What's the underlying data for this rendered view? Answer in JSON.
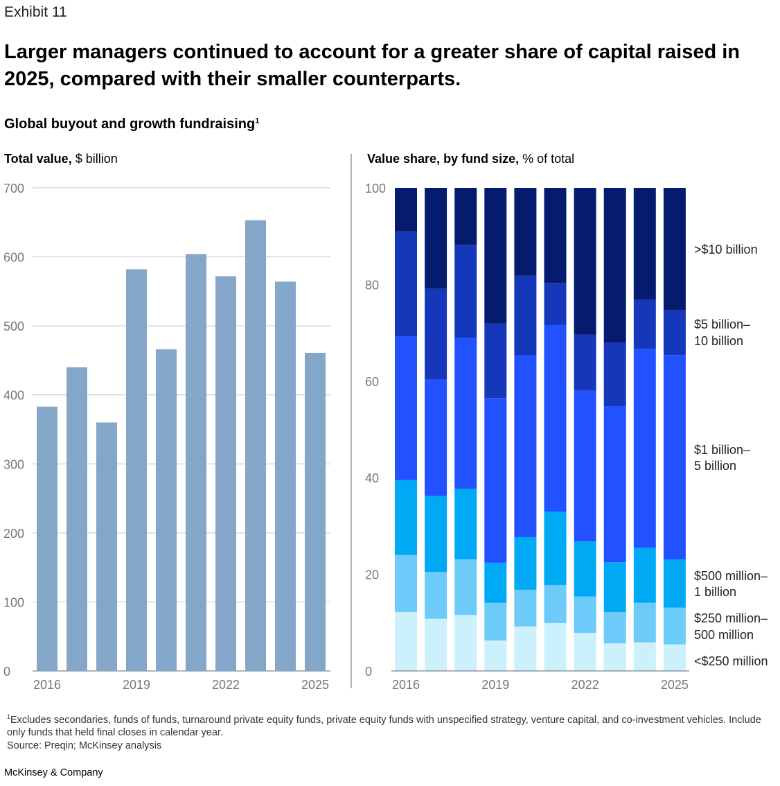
{
  "exhibit": "Exhibit 11",
  "title": "Larger managers continued to account for a greater share of capital raised in 2025, compared with their smaller counterparts.",
  "subtitle": "Global buyout and growth fundraising",
  "subtitle_sup": "1",
  "footnote": {
    "sup": "1",
    "text": "Excludes secondaries, funds of funds, turnaround private equity funds, private equity funds with unspecified strategy, venture capital, and co-investment vehicles. Include only funds that held final closes in calendar year.",
    "source": "Source: Preqin; McKinsey analysis"
  },
  "brand": "McKinsey & Company",
  "chart_data": [
    {
      "type": "bar",
      "title_bold": "Total value,",
      "title_rest": " $ billion",
      "categories": [
        "2016",
        "2017",
        "2018",
        "2019",
        "2020",
        "2021",
        "2022",
        "2023",
        "2024",
        "2025"
      ],
      "x_tick_labels": [
        "2016",
        "2019",
        "2022",
        "2025"
      ],
      "values": [
        383,
        440,
        360,
        582,
        466,
        604,
        572,
        653,
        564,
        461
      ],
      "ylim": [
        0,
        700
      ],
      "yticks": [
        "0",
        "100",
        "200",
        "300",
        "400",
        "500",
        "600",
        "700"
      ],
      "color": "#84a7c9",
      "grid": true
    },
    {
      "type": "bar",
      "stacked": true,
      "title_bold": "Value share, by fund size,",
      "title_rest": " % of total",
      "categories": [
        "2016",
        "2017",
        "2018",
        "2019",
        "2020",
        "2021",
        "2022",
        "2023",
        "2024",
        "2025"
      ],
      "x_tick_labels": [
        "2016",
        "2019",
        "2022",
        "2025"
      ],
      "ylim": [
        0,
        100
      ],
      "yticks": [
        "0",
        "20",
        "40",
        "60",
        "80",
        "100"
      ],
      "legend_placement": "right",
      "series": [
        {
          "name": "<$250 million",
          "lines": [
            "<$250 million"
          ],
          "color": "#cdf0fd",
          "values": [
            12.2,
            10.8,
            11.6,
            6.3,
            9.2,
            9.9,
            7.9,
            5.7,
            5.9,
            5.5
          ]
        },
        {
          "name": "$250 million–500 million",
          "lines": [
            "$250 million–",
            "500 million"
          ],
          "color": "#6ccbf8",
          "values": [
            11.8,
            9.7,
            11.5,
            7.8,
            7.6,
            7.9,
            7.5,
            6.5,
            8.2,
            7.6
          ]
        },
        {
          "name": "$500 million–1 billion",
          "lines": [
            "$500 million–",
            "1 billion"
          ],
          "color": "#00a9f4",
          "values": [
            15.5,
            15.7,
            14.6,
            8.3,
            10.9,
            15.2,
            11.4,
            10.3,
            11.4,
            10.0
          ]
        },
        {
          "name": "$1 billion–5 billion",
          "lines": [
            "$1 billion–",
            "5 billion"
          ],
          "color": "#2251ff",
          "values": [
            29.8,
            24.1,
            31.2,
            34.1,
            37.6,
            38.6,
            31.2,
            32.3,
            41.2,
            42.3
          ]
        },
        {
          "name": "$5 billion–10 billion",
          "lines": [
            "$5 billion–",
            "10 billion"
          ],
          "color": "#1537ba",
          "values": [
            21.7,
            18.8,
            19.3,
            15.4,
            16.5,
            8.7,
            11.6,
            13.1,
            10.2,
            9.3
          ]
        },
        {
          "name": ">$10 billion",
          "lines": [
            ">$10 billion"
          ],
          "color": "#051c6e",
          "values": [
            9.0,
            20.9,
            11.8,
            28.1,
            18.2,
            19.7,
            30.4,
            32.1,
            23.1,
            25.3
          ]
        }
      ]
    }
  ]
}
